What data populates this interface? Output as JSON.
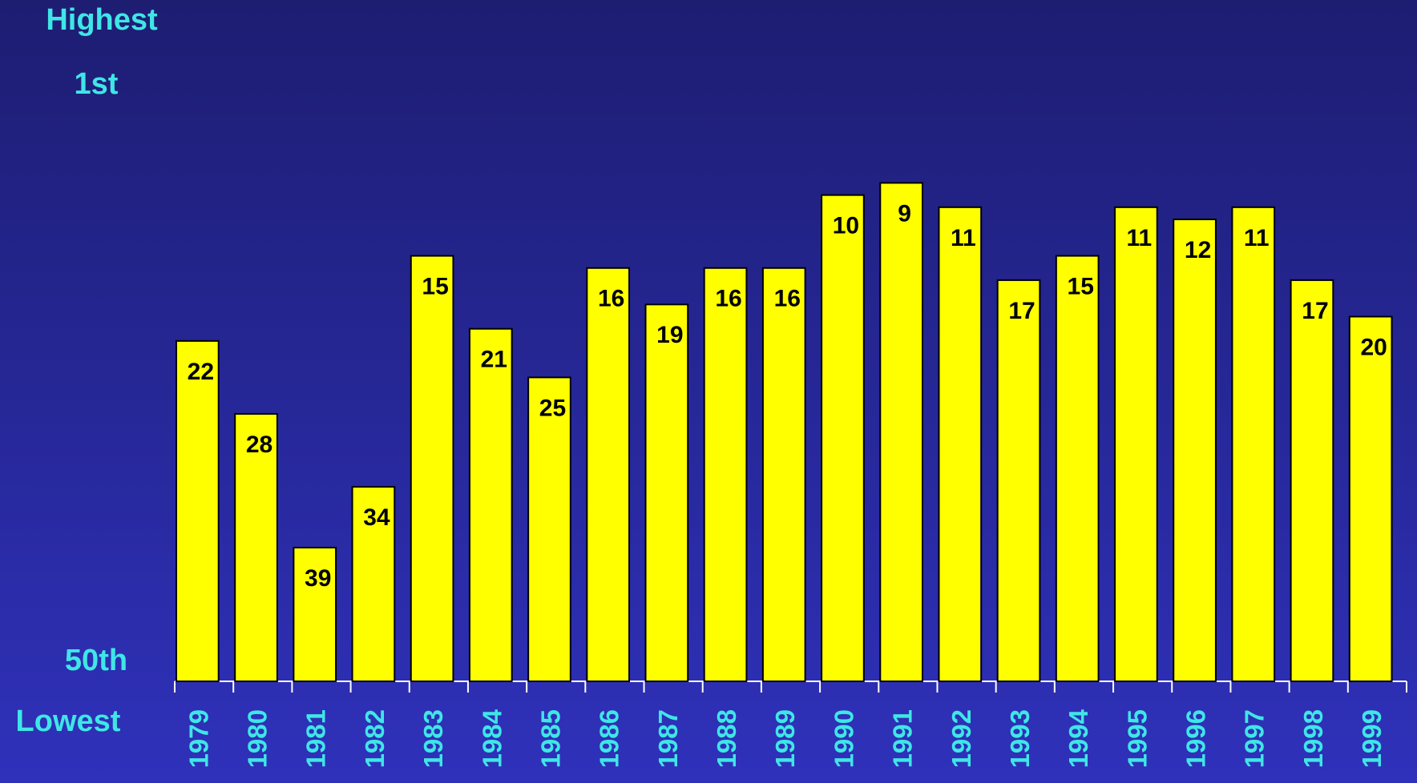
{
  "chart_data": {
    "type": "bar",
    "annotations": [
      "Highest",
      "Lowest"
    ],
    "categories": [
      "1979",
      "1980",
      "1981",
      "1982",
      "1983",
      "1984",
      "1985",
      "1986",
      "1987",
      "1988",
      "1989",
      "1990",
      "1991",
      "1992",
      "1993",
      "1994",
      "1995",
      "1996",
      "1997",
      "1998",
      "1999"
    ],
    "values": [
      22,
      28,
      39,
      34,
      15,
      21,
      25,
      16,
      19,
      16,
      16,
      10,
      9,
      11,
      17,
      15,
      11,
      12,
      11,
      17,
      20
    ],
    "color": "#ffff00",
    "ylim": [
      50,
      1
    ],
    "yticks": [
      {
        "value": 1,
        "label": "1st"
      },
      {
        "value": 50,
        "label": "50th"
      }
    ],
    "grid": false
  }
}
